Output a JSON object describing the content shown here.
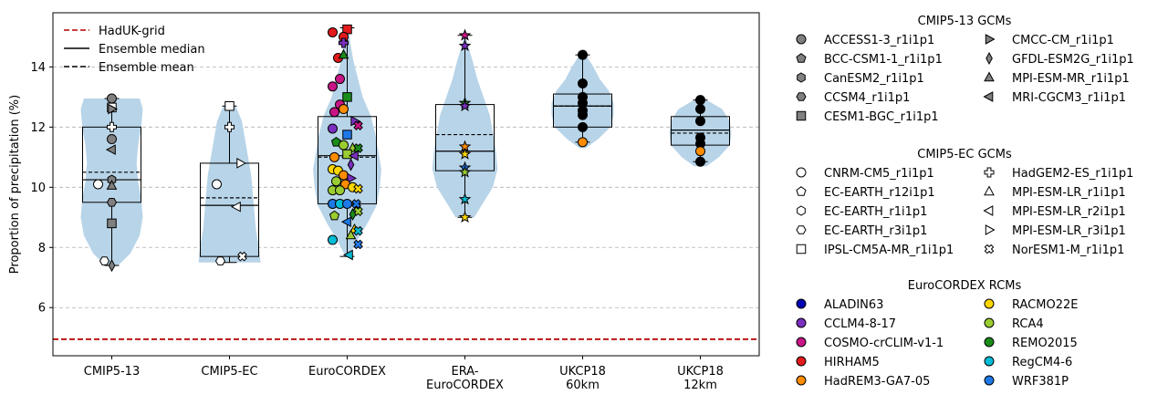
{
  "chart_data": {
    "type": "violin+box+scatter",
    "ylabel": "Proportion of precipitation (%)",
    "ylim": [
      4.4,
      15.8
    ],
    "yticks": [
      6,
      8,
      10,
      12,
      14
    ],
    "grid": {
      "y": true,
      "style": "dashed"
    },
    "categories": [
      "CMIP5-13",
      "CMIP5-EC",
      "EuroCORDEX",
      "ERA-\nEuroCORDEX",
      "UKCP18\n60km",
      "UKCP18\n12km"
    ],
    "reference_line": {
      "label": "HadUK-grid",
      "value": 4.95,
      "color": "#b30000"
    },
    "legend_lines": [
      {
        "label": "HadUK-grid",
        "style": "dashed",
        "color": "#b30000"
      },
      {
        "label": "Ensemble median",
        "style": "solid",
        "color": "#000000"
      },
      {
        "label": "Ensemble mean",
        "style": "dashed",
        "color": "#000000"
      }
    ],
    "violin_color": "#b8d4e8",
    "distributions": [
      {
        "category": "CMIP5-13",
        "min": 7.4,
        "q1": 9.5,
        "median": 10.25,
        "mean": 10.5,
        "q3": 12.0,
        "max": 12.95,
        "violin": [
          [
            7.4,
            0.2
          ],
          [
            7.8,
            0.6
          ],
          [
            8.4,
            0.9
          ],
          [
            9.0,
            1.0
          ],
          [
            9.6,
            0.95
          ],
          [
            10.2,
            0.85
          ],
          [
            10.8,
            0.8
          ],
          [
            11.4,
            0.85
          ],
          [
            12.0,
            0.95
          ],
          [
            12.6,
            1.0
          ],
          [
            12.95,
            0.9
          ]
        ]
      },
      {
        "category": "CMIP5-EC",
        "min": 7.5,
        "q1": 7.7,
        "median": 9.4,
        "mean": 9.65,
        "q3": 10.8,
        "max": 12.7,
        "violin": [
          [
            7.5,
            1.0
          ],
          [
            8.0,
            0.95
          ],
          [
            8.6,
            0.85
          ],
          [
            9.2,
            0.8
          ],
          [
            9.8,
            0.75
          ],
          [
            10.4,
            0.7
          ],
          [
            11.0,
            0.6
          ],
          [
            11.6,
            0.5
          ],
          [
            12.2,
            0.4
          ],
          [
            12.7,
            0.2
          ]
        ]
      },
      {
        "category": "EuroCORDEX",
        "min": 7.7,
        "q1": 9.45,
        "median": 11.05,
        "mean": 11.0,
        "q3": 12.35,
        "max": 15.3,
        "violin": [
          [
            7.7,
            0.05
          ],
          [
            8.2,
            0.3
          ],
          [
            8.8,
            0.65
          ],
          [
            9.4,
            0.95
          ],
          [
            10.0,
            1.05
          ],
          [
            10.6,
            1.1
          ],
          [
            11.2,
            1.0
          ],
          [
            11.8,
            0.9
          ],
          [
            12.4,
            0.75
          ],
          [
            13.0,
            0.5
          ],
          [
            13.6,
            0.35
          ],
          [
            14.2,
            0.2
          ],
          [
            14.8,
            0.1
          ],
          [
            15.3,
            0.04
          ]
        ]
      },
      {
        "category": "ERA-EuroCORDEX",
        "min": 9.0,
        "q1": 10.55,
        "median": 11.2,
        "mean": 11.75,
        "q3": 12.75,
        "max": 15.05,
        "violin": [
          [
            9.0,
            0.3
          ],
          [
            9.5,
            0.6
          ],
          [
            10.0,
            0.9
          ],
          [
            10.6,
            1.05
          ],
          [
            11.2,
            1.0
          ],
          [
            11.8,
            0.9
          ],
          [
            12.4,
            0.8
          ],
          [
            13.0,
            0.6
          ],
          [
            13.6,
            0.4
          ],
          [
            14.2,
            0.25
          ],
          [
            14.7,
            0.1
          ],
          [
            15.05,
            0.03
          ]
        ]
      },
      {
        "category": "UKCP18 60km",
        "min": 11.5,
        "q1": 12.0,
        "median": 12.7,
        "mean": 12.7,
        "q3": 13.1,
        "max": 14.4,
        "violin": [
          [
            11.3,
            0.1
          ],
          [
            11.6,
            0.5
          ],
          [
            12.0,
            0.9
          ],
          [
            12.4,
            1.0
          ],
          [
            12.8,
            1.0
          ],
          [
            13.2,
            0.85
          ],
          [
            13.6,
            0.55
          ],
          [
            14.0,
            0.35
          ],
          [
            14.4,
            0.1
          ]
        ]
      },
      {
        "category": "UKCP18 12km",
        "min": 10.85,
        "q1": 11.4,
        "median": 11.9,
        "mean": 11.8,
        "q3": 12.35,
        "max": 12.9,
        "violin": [
          [
            10.7,
            0.2
          ],
          [
            11.0,
            0.6
          ],
          [
            11.4,
            0.95
          ],
          [
            11.8,
            1.0
          ],
          [
            12.2,
            0.95
          ],
          [
            12.6,
            0.7
          ],
          [
            12.9,
            0.2
          ]
        ]
      }
    ],
    "points": [
      {
        "c": 0,
        "dx": 0,
        "y": 12.95,
        "m": "o",
        "f": "#808080"
      },
      {
        "c": 0,
        "dx": 0,
        "y": 11.6,
        "m": "o",
        "f": "#808080"
      },
      {
        "c": 0,
        "dx": 0,
        "y": 12.65,
        "m": "s",
        "f": "#ffffff"
      },
      {
        "c": 0,
        "dx": 0,
        "y": 12.0,
        "m": "P",
        "f": "#ffffff"
      },
      {
        "c": 0,
        "dx": 0,
        "y": 12.6,
        "m": ">",
        "f": "#808080"
      },
      {
        "c": 0,
        "dx": 0,
        "y": 11.25,
        "m": "<",
        "f": "#808080"
      },
      {
        "c": 0,
        "dx": 0,
        "y": 10.25,
        "m": "h",
        "f": "#808080"
      },
      {
        "c": 0,
        "dx": 0,
        "y": 10.05,
        "m": "^",
        "f": "#808080"
      },
      {
        "c": 0,
        "dx": -15,
        "y": 10.1,
        "m": "o",
        "f": "#ffffff"
      },
      {
        "c": 0,
        "dx": 0,
        "y": 9.5,
        "m": "H",
        "f": "#808080"
      },
      {
        "c": 0,
        "dx": 0,
        "y": 8.8,
        "m": "s",
        "f": "#808080"
      },
      {
        "c": 0,
        "dx": -8,
        "y": 7.55,
        "m": "H",
        "f": "#ffffff"
      },
      {
        "c": 0,
        "dx": 0,
        "y": 7.4,
        "m": "d",
        "f": "#808080"
      },
      {
        "c": 1,
        "dx": 0,
        "y": 12.7,
        "m": "s",
        "f": "#ffffff"
      },
      {
        "c": 1,
        "dx": 0,
        "y": 12.0,
        "m": "P",
        "f": "#ffffff"
      },
      {
        "c": 1,
        "dx": 12,
        "y": 10.8,
        "m": ">",
        "f": "#ffffff"
      },
      {
        "c": 1,
        "dx": -14,
        "y": 10.1,
        "m": "o",
        "f": "#ffffff"
      },
      {
        "c": 1,
        "dx": 8,
        "y": 9.35,
        "m": "<",
        "f": "#ffffff"
      },
      {
        "c": 1,
        "dx": 14,
        "y": 7.7,
        "m": "X",
        "f": "#ffffff"
      },
      {
        "c": 1,
        "dx": -10,
        "y": 7.55,
        "m": "H",
        "f": "#ffffff"
      },
      {
        "c": 2,
        "dx": 0,
        "y": 15.25,
        "m": "s",
        "f": "#e31a1c"
      },
      {
        "c": 2,
        "dx": -16,
        "y": 15.15,
        "m": "o",
        "f": "#e31a1c"
      },
      {
        "c": 2,
        "dx": -4,
        "y": 15.0,
        "m": "o",
        "f": "#e31a1c"
      },
      {
        "c": 2,
        "dx": -4,
        "y": 14.8,
        "m": "P",
        "f": "#7b2fbf"
      },
      {
        "c": 2,
        "dx": -10,
        "y": 14.3,
        "m": "o",
        "f": "#e31a1c"
      },
      {
        "c": 2,
        "dx": -4,
        "y": 14.4,
        "m": "^",
        "f": "#1a8c1a"
      },
      {
        "c": 2,
        "dx": -8,
        "y": 13.6,
        "m": "o",
        "f": "#c71585"
      },
      {
        "c": 2,
        "dx": -16,
        "y": 13.35,
        "m": "o",
        "f": "#c71585"
      },
      {
        "c": 2,
        "dx": 0,
        "y": 13.0,
        "m": "s",
        "f": "#1a8c1a"
      },
      {
        "c": 2,
        "dx": -8,
        "y": 12.75,
        "m": "o",
        "f": "#c71585"
      },
      {
        "c": 2,
        "dx": -14,
        "y": 12.5,
        "m": "o",
        "f": "#c71585"
      },
      {
        "c": 2,
        "dx": -4,
        "y": 12.6,
        "m": "o",
        "f": "#ff8c00"
      },
      {
        "c": 2,
        "dx": 8,
        "y": 12.2,
        "m": ">",
        "f": "#7b2fbf"
      },
      {
        "c": 2,
        "dx": 12,
        "y": 12.05,
        "m": "X",
        "f": "#c71585"
      },
      {
        "c": 2,
        "dx": -16,
        "y": 11.95,
        "m": "o",
        "f": "#7b2fbf"
      },
      {
        "c": 2,
        "dx": 0,
        "y": 11.75,
        "m": "s",
        "f": "#1e78e6"
      },
      {
        "c": 2,
        "dx": -12,
        "y": 11.5,
        "m": "p",
        "f": "#1a8c1a"
      },
      {
        "c": 2,
        "dx": -4,
        "y": 11.4,
        "m": "o",
        "f": "#9acd32"
      },
      {
        "c": 2,
        "dx": 6,
        "y": 11.3,
        "m": "^",
        "f": "#9acd32"
      },
      {
        "c": 2,
        "dx": 12,
        "y": 11.3,
        "m": "X",
        "f": "#1a8c1a"
      },
      {
        "c": 2,
        "dx": 0,
        "y": 11.1,
        "m": "s",
        "f": "#9acd32"
      },
      {
        "c": 2,
        "dx": -14,
        "y": 11.0,
        "m": "o",
        "f": "#ff8c00"
      },
      {
        "c": 2,
        "dx": 8,
        "y": 11.05,
        "m": "<",
        "f": "#7b2fbf"
      },
      {
        "c": 2,
        "dx": 4,
        "y": 10.75,
        "m": "d",
        "f": "#7b2fbf"
      },
      {
        "c": 2,
        "dx": -16,
        "y": 10.6,
        "m": "o",
        "f": "#ffd700"
      },
      {
        "c": 2,
        "dx": -10,
        "y": 10.55,
        "m": "o",
        "f": "#ffd700"
      },
      {
        "c": 2,
        "dx": -4,
        "y": 10.4,
        "m": "o",
        "f": "#ff8c00"
      },
      {
        "c": 2,
        "dx": 4,
        "y": 10.3,
        "m": ">",
        "f": "#7b2fbf"
      },
      {
        "c": 2,
        "dx": -12,
        "y": 10.2,
        "m": "o",
        "f": "#9acd32"
      },
      {
        "c": 2,
        "dx": -2,
        "y": 10.1,
        "m": "o",
        "f": "#ff8c00"
      },
      {
        "c": 2,
        "dx": 6,
        "y": 10.0,
        "m": "o",
        "f": "#ffd700"
      },
      {
        "c": 2,
        "dx": 12,
        "y": 9.95,
        "m": "X",
        "f": "#ffd700"
      },
      {
        "c": 2,
        "dx": -16,
        "y": 9.9,
        "m": "o",
        "f": "#9acd32"
      },
      {
        "c": 2,
        "dx": -8,
        "y": 9.9,
        "m": "o",
        "f": "#9acd32"
      },
      {
        "c": 2,
        "dx": -16,
        "y": 9.45,
        "m": "o",
        "f": "#1e78e6"
      },
      {
        "c": 2,
        "dx": -8,
        "y": 9.45,
        "m": "o",
        "f": "#00bcd4"
      },
      {
        "c": 2,
        "dx": 0,
        "y": 9.45,
        "m": "o",
        "f": "#1e78e6"
      },
      {
        "c": 2,
        "dx": 10,
        "y": 9.45,
        "m": "X",
        "f": "#1e78e6"
      },
      {
        "c": 2,
        "dx": 12,
        "y": 9.2,
        "m": "X",
        "f": "#9acd32"
      },
      {
        "c": 2,
        "dx": 6,
        "y": 9.1,
        "m": "d",
        "f": "#1a8c1a"
      },
      {
        "c": 2,
        "dx": -14,
        "y": 9.05,
        "m": "p",
        "f": "#9acd32"
      },
      {
        "c": 2,
        "dx": 0,
        "y": 8.85,
        "m": "<",
        "f": "#1e78e6"
      },
      {
        "c": 2,
        "dx": 8,
        "y": 8.6,
        "m": "^",
        "f": "#ffd700"
      },
      {
        "c": 2,
        "dx": 12,
        "y": 8.55,
        "m": "X",
        "f": "#00bcd4"
      },
      {
        "c": 2,
        "dx": 4,
        "y": 8.4,
        "m": "^",
        "f": "#9acd32"
      },
      {
        "c": 2,
        "dx": -16,
        "y": 8.25,
        "m": "o",
        "f": "#00bcd4"
      },
      {
        "c": 2,
        "dx": 12,
        "y": 8.1,
        "m": "X",
        "f": "#1e78e6"
      },
      {
        "c": 2,
        "dx": 2,
        "y": 7.75,
        "m": "<",
        "f": "#00bcd4"
      },
      {
        "c": 3,
        "dx": 0,
        "y": 15.05,
        "m": "*",
        "f": "#c71585"
      },
      {
        "c": 3,
        "dx": 0,
        "y": 14.7,
        "m": "*",
        "f": "#7b2fbf"
      },
      {
        "c": 3,
        "dx": 0,
        "y": 12.8,
        "m": "*",
        "f": "#1a8c1a"
      },
      {
        "c": 3,
        "dx": 0,
        "y": 12.7,
        "m": "*",
        "f": "#7b2fbf"
      },
      {
        "c": 3,
        "dx": 0,
        "y": 11.35,
        "m": "*",
        "f": "#ff8c00"
      },
      {
        "c": 3,
        "dx": 0,
        "y": 11.1,
        "m": "*",
        "f": "#ffd700"
      },
      {
        "c": 3,
        "dx": 0,
        "y": 10.65,
        "m": "*",
        "f": "#1e78e6"
      },
      {
        "c": 3,
        "dx": 0,
        "y": 10.5,
        "m": "*",
        "f": "#9acd32"
      },
      {
        "c": 3,
        "dx": 0,
        "y": 9.6,
        "m": "*",
        "f": "#00bcd4"
      },
      {
        "c": 3,
        "dx": 0,
        "y": 9.0,
        "m": "*",
        "f": "#ffd700"
      },
      {
        "c": 4,
        "dx": 0,
        "y": 14.4,
        "m": "o",
        "f": "#000000"
      },
      {
        "c": 4,
        "dx": 0,
        "y": 13.45,
        "m": "o",
        "f": "#000000"
      },
      {
        "c": 4,
        "dx": 0,
        "y": 13.0,
        "m": "o",
        "f": "#000000"
      },
      {
        "c": 4,
        "dx": 0,
        "y": 12.8,
        "m": "o",
        "f": "#000000"
      },
      {
        "c": 4,
        "dx": 0,
        "y": 12.55,
        "m": "o",
        "f": "#000000"
      },
      {
        "c": 4,
        "dx": 0,
        "y": 12.4,
        "m": "o",
        "f": "#000000"
      },
      {
        "c": 4,
        "dx": 0,
        "y": 12.0,
        "m": "o",
        "f": "#000000"
      },
      {
        "c": 4,
        "dx": 0,
        "y": 11.5,
        "m": "o",
        "f": "#ff8c00"
      },
      {
        "c": 5,
        "dx": 0,
        "y": 12.9,
        "m": "o",
        "f": "#000000"
      },
      {
        "c": 5,
        "dx": 0,
        "y": 12.6,
        "m": "o",
        "f": "#000000"
      },
      {
        "c": 5,
        "dx": 0,
        "y": 12.2,
        "m": "o",
        "f": "#000000"
      },
      {
        "c": 5,
        "dx": 0,
        "y": 11.65,
        "m": "o",
        "f": "#000000"
      },
      {
        "c": 5,
        "dx": 0,
        "y": 11.45,
        "m": "o",
        "f": "#000000"
      },
      {
        "c": 5,
        "dx": 0,
        "y": 11.2,
        "m": "o",
        "f": "#ff8c00"
      },
      {
        "c": 5,
        "dx": 0,
        "y": 10.85,
        "m": "o",
        "f": "#000000"
      }
    ],
    "legends": [
      {
        "title": "CMIP5-13 GCMs",
        "items": [
          {
            "label": "ACCESS1-3_r1i1p1",
            "m": "o",
            "f": "#808080"
          },
          {
            "label": "BCC-CSM1-1_r1i1p1",
            "m": "p",
            "f": "#808080"
          },
          {
            "label": "CanESM2_r1i1p1",
            "m": "h",
            "f": "#808080"
          },
          {
            "label": "CCSM4_r1i1p1",
            "m": "H",
            "f": "#808080"
          },
          {
            "label": "CESM1-BGC_r1i1p1",
            "m": "s",
            "f": "#808080"
          },
          {
            "label": "CMCC-CM_r1i1p1",
            "m": ">",
            "f": "#808080"
          },
          {
            "label": "GFDL-ESM2G_r1i1p1",
            "m": "d",
            "f": "#808080"
          },
          {
            "label": "MPI-ESM-MR_r1i1p1",
            "m": "^",
            "f": "#808080"
          },
          {
            "label": "MRI-CGCM3_r1i1p1",
            "m": "<",
            "f": "#808080"
          }
        ]
      },
      {
        "title": "CMIP5-EC GCMs",
        "items": [
          {
            "label": "CNRM-CM5_r1i1p1",
            "m": "o",
            "f": "#ffffff"
          },
          {
            "label": "EC-EARTH_r12i1p1",
            "m": "p",
            "f": "#ffffff"
          },
          {
            "label": "EC-EARTH_r1i1p1",
            "m": "h",
            "f": "#ffffff"
          },
          {
            "label": "EC-EARTH_r3i1p1",
            "m": "H",
            "f": "#ffffff"
          },
          {
            "label": "IPSL-CM5A-MR_r1i1p1",
            "m": "s",
            "f": "#ffffff"
          },
          {
            "label": "HadGEM2-ES_r1i1p1",
            "m": "P",
            "f": "#ffffff"
          },
          {
            "label": "MPI-ESM-LR_r1i1p1",
            "m": "^",
            "f": "#ffffff"
          },
          {
            "label": "MPI-ESM-LR_r2i1p1",
            "m": "<",
            "f": "#ffffff"
          },
          {
            "label": "MPI-ESM-LR_r3i1p1",
            "m": ">",
            "f": "#ffffff"
          },
          {
            "label": "NorESM1-M_r1i1p1",
            "m": "X",
            "f": "#ffffff"
          }
        ]
      },
      {
        "title": "EuroCORDEX RCMs",
        "items": [
          {
            "label": "ALADIN63",
            "m": "o",
            "f": "#0000b3"
          },
          {
            "label": "CCLM4-8-17",
            "m": "o",
            "f": "#7b2fbf"
          },
          {
            "label": "COSMO-crCLIM-v1-1",
            "m": "o",
            "f": "#c71585"
          },
          {
            "label": "HIRHAM5",
            "m": "o",
            "f": "#e31a1c"
          },
          {
            "label": "HadREM3-GA7-05",
            "m": "o",
            "f": "#ff8c00"
          },
          {
            "label": "RACMO22E",
            "m": "o",
            "f": "#ffd700"
          },
          {
            "label": "RCA4",
            "m": "o",
            "f": "#9acd32"
          },
          {
            "label": "REMO2015",
            "m": "o",
            "f": "#1a8c1a"
          },
          {
            "label": "RegCM4-6",
            "m": "o",
            "f": "#00bcd4"
          },
          {
            "label": "WRF381P",
            "m": "o",
            "f": "#1e78e6"
          }
        ]
      }
    ]
  }
}
